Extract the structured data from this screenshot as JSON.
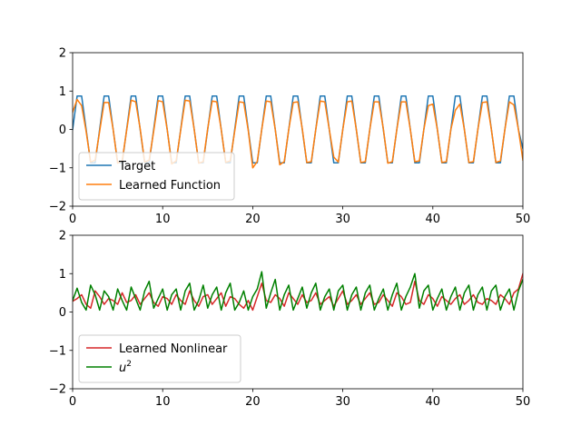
{
  "chart_data": [
    {
      "type": "line",
      "xlim": [
        0,
        50
      ],
      "ylim": [
        -2,
        2
      ],
      "xticks": [
        0,
        10,
        20,
        30,
        40,
        50
      ],
      "yticks": [
        -2,
        -1,
        0,
        1,
        2
      ],
      "grid": false,
      "legend_position": "lower-left",
      "series": [
        {
          "name": "Target",
          "color": "#1f77b4",
          "x": [
            0,
            0.5,
            1,
            1.5,
            2,
            2.5,
            3,
            3.5,
            4,
            4.5,
            5,
            5.5,
            6,
            6.5,
            7,
            7.5,
            8,
            8.5,
            9,
            9.5,
            10,
            10.5,
            11,
            11.5,
            12,
            12.5,
            13,
            13.5,
            14,
            14.5,
            15,
            15.5,
            16,
            16.5,
            17,
            17.5,
            18,
            18.5,
            19,
            19.5,
            20,
            20.5,
            21,
            21.5,
            22,
            22.5,
            23,
            23.5,
            24,
            24.5,
            25,
            25.5,
            26,
            26.5,
            27,
            27.5,
            28,
            28.5,
            29,
            29.5,
            30,
            30.5,
            31,
            31.5,
            32,
            32.5,
            33,
            33.5,
            34,
            34.5,
            35,
            35.5,
            36,
            36.5,
            37,
            37.5,
            38,
            38.5,
            39,
            39.5,
            40,
            40.5,
            41,
            41.5,
            42,
            42.5,
            43,
            43.5,
            44,
            44.5,
            45,
            45.5,
            46,
            46.5,
            47,
            47.5,
            48,
            48.5,
            49,
            49.5,
            50
          ],
          "y": [
            0.0,
            0.87,
            0.87,
            0.0,
            -0.87,
            -0.87,
            0.0,
            0.87,
            0.87,
            0.0,
            -0.87,
            -0.87,
            0.0,
            0.87,
            0.87,
            0.0,
            -0.87,
            -0.87,
            0.0,
            0.87,
            0.87,
            0.0,
            -0.87,
            -0.87,
            0.0,
            0.87,
            0.87,
            0.0,
            -0.87,
            -0.87,
            0.0,
            0.87,
            0.87,
            0.0,
            -0.87,
            -0.87,
            0.0,
            0.87,
            0.87,
            0.0,
            -0.87,
            -0.87,
            0.0,
            0.87,
            0.87,
            0.0,
            -0.87,
            -0.87,
            0.0,
            0.87,
            0.87,
            0.0,
            -0.87,
            -0.87,
            0.0,
            0.87,
            0.87,
            0.0,
            -0.87,
            -0.87,
            0.0,
            0.87,
            0.87,
            0.0,
            -0.87,
            -0.87,
            0.0,
            0.87,
            0.87,
            0.0,
            -0.87,
            -0.87,
            0.0,
            0.87,
            0.87,
            0.0,
            -0.87,
            -0.87,
            0.0,
            0.87,
            0.87,
            0.0,
            -0.87,
            -0.87,
            0.0,
            0.87,
            0.87,
            0.0,
            -0.87,
            -0.87,
            0.0,
            0.87,
            0.87,
            0.0,
            -0.87,
            -0.87,
            0.0,
            0.87,
            0.87,
            0.0,
            -0.5
          ]
        },
        {
          "name": "Learned Function",
          "color": "#ff7f0e",
          "x": [
            0,
            0.5,
            1,
            1.5,
            2,
            2.5,
            3,
            3.5,
            4,
            4.5,
            5,
            5.5,
            6,
            6.5,
            7,
            7.5,
            8,
            8.5,
            9,
            9.5,
            10,
            10.5,
            11,
            11.5,
            12,
            12.5,
            13,
            13.5,
            14,
            14.5,
            15,
            15.5,
            16,
            16.5,
            17,
            17.5,
            18,
            18.5,
            19,
            19.5,
            20,
            20.5,
            21,
            21.5,
            22,
            22.5,
            23,
            23.5,
            24,
            24.5,
            25,
            25.5,
            26,
            26.5,
            27,
            27.5,
            28,
            28.5,
            29,
            29.5,
            30,
            30.5,
            31,
            31.5,
            32,
            32.5,
            33,
            33.5,
            34,
            34.5,
            35,
            35.5,
            36,
            36.5,
            37,
            37.5,
            38,
            38.5,
            39,
            39.5,
            40,
            40.5,
            41,
            41.5,
            42,
            42.5,
            43,
            43.5,
            44,
            44.5,
            45,
            45.5,
            46,
            46.5,
            47,
            47.5,
            48,
            48.5,
            49,
            49.5,
            50
          ],
          "y": [
            0.45,
            0.78,
            0.62,
            -0.05,
            -0.85,
            -0.8,
            -0.05,
            0.7,
            0.7,
            0.0,
            -0.88,
            -0.82,
            -0.02,
            0.76,
            0.72,
            0.02,
            -0.85,
            -0.8,
            -0.05,
            0.75,
            0.72,
            0.0,
            -0.9,
            -0.82,
            -0.02,
            0.76,
            0.74,
            0.0,
            -0.88,
            -0.84,
            0.02,
            0.74,
            0.72,
            0.0,
            -0.86,
            -0.82,
            -0.04,
            0.72,
            0.7,
            -0.02,
            -1.0,
            -0.84,
            0.0,
            0.74,
            0.72,
            0.0,
            -0.92,
            -0.84,
            0.0,
            0.7,
            0.72,
            0.02,
            -0.86,
            -0.84,
            0.0,
            0.74,
            0.72,
            0.0,
            -0.72,
            -0.85,
            0.0,
            0.72,
            0.74,
            0.0,
            -0.86,
            -0.84,
            0.0,
            0.72,
            0.72,
            0.02,
            -0.88,
            -0.84,
            0.0,
            0.72,
            0.72,
            0.0,
            -0.84,
            -0.82,
            0.0,
            0.62,
            0.66,
            0.0,
            -0.86,
            -0.84,
            0.0,
            0.5,
            0.66,
            0.0,
            -0.86,
            -0.84,
            0.0,
            0.7,
            0.72,
            0.0,
            -0.86,
            -0.82,
            0.0,
            0.72,
            0.64,
            0.0,
            -0.8
          ]
        }
      ]
    },
    {
      "type": "line",
      "xlim": [
        0,
        50
      ],
      "ylim": [
        -2,
        2
      ],
      "xticks": [
        0,
        10,
        20,
        30,
        40,
        50
      ],
      "yticks": [
        -2,
        -1,
        0,
        1,
        2
      ],
      "grid": false,
      "legend_position": "lower-left",
      "series": [
        {
          "name": "Learned Nonlinear",
          "color": "#d62728",
          "x": [
            0,
            0.5,
            1,
            1.5,
            2,
            2.5,
            3,
            3.5,
            4,
            4.5,
            5,
            5.5,
            6,
            6.5,
            7,
            7.5,
            8,
            8.5,
            9,
            9.5,
            10,
            10.5,
            11,
            11.5,
            12,
            12.5,
            13,
            13.5,
            14,
            14.5,
            15,
            15.5,
            16,
            16.5,
            17,
            17.5,
            18,
            18.5,
            19,
            19.5,
            20,
            20.5,
            21,
            21.5,
            22,
            22.5,
            23,
            23.5,
            24,
            24.5,
            25,
            25.5,
            26,
            26.5,
            27,
            27.5,
            28,
            28.5,
            29,
            29.5,
            30,
            30.5,
            31,
            31.5,
            32,
            32.5,
            33,
            33.5,
            34,
            34.5,
            35,
            35.5,
            36,
            36.5,
            37,
            37.5,
            38,
            38.5,
            39,
            39.5,
            40,
            40.5,
            41,
            41.5,
            42,
            42.5,
            43,
            43.5,
            44,
            44.5,
            45,
            45.5,
            46,
            46.5,
            47,
            47.5,
            48,
            48.5,
            49,
            49.5,
            50
          ],
          "y": [
            0.28,
            0.35,
            0.45,
            0.2,
            0.1,
            0.55,
            0.4,
            0.2,
            0.35,
            0.3,
            0.2,
            0.5,
            0.25,
            0.3,
            0.45,
            0.2,
            0.35,
            0.5,
            0.25,
            0.15,
            0.4,
            0.35,
            0.2,
            0.45,
            0.3,
            0.2,
            0.55,
            0.3,
            0.15,
            0.4,
            0.45,
            0.2,
            0.35,
            0.5,
            0.15,
            0.4,
            0.35,
            0.2,
            0.1,
            0.3,
            0.05,
            0.4,
            0.75,
            0.3,
            0.25,
            0.45,
            0.35,
            0.15,
            0.5,
            0.35,
            0.2,
            0.45,
            0.25,
            0.3,
            0.5,
            0.2,
            0.3,
            0.4,
            0.15,
            0.35,
            0.55,
            0.2,
            0.3,
            0.45,
            0.2,
            0.35,
            0.5,
            0.2,
            0.25,
            0.45,
            0.3,
            0.15,
            0.5,
            0.4,
            0.2,
            0.25,
            0.8,
            0.3,
            0.2,
            0.45,
            0.35,
            0.15,
            0.4,
            0.3,
            0.2,
            0.35,
            0.45,
            0.2,
            0.3,
            0.45,
            0.25,
            0.2,
            0.35,
            0.3,
            0.2,
            0.45,
            0.35,
            0.2,
            0.5,
            0.6,
            1.0
          ]
        },
        {
          "name": "u²",
          "color": "#008000",
          "x": [
            0,
            0.5,
            1,
            1.5,
            2,
            2.5,
            3,
            3.5,
            4,
            4.5,
            5,
            5.5,
            6,
            6.5,
            7,
            7.5,
            8,
            8.5,
            9,
            9.5,
            10,
            10.5,
            11,
            11.5,
            12,
            12.5,
            13,
            13.5,
            14,
            14.5,
            15,
            15.5,
            16,
            16.5,
            17,
            17.5,
            18,
            18.5,
            19,
            19.5,
            20,
            20.5,
            21,
            21.5,
            22,
            22.5,
            23,
            23.5,
            24,
            24.5,
            25,
            25.5,
            26,
            26.5,
            27,
            27.5,
            28,
            28.5,
            29,
            29.5,
            30,
            30.5,
            31,
            31.5,
            32,
            32.5,
            33,
            33.5,
            34,
            34.5,
            35,
            35.5,
            36,
            36.5,
            37,
            37.5,
            38,
            38.5,
            39,
            39.5,
            40,
            40.5,
            41,
            41.5,
            42,
            42.5,
            43,
            43.5,
            44,
            44.5,
            45,
            45.5,
            46,
            46.5,
            47,
            47.5,
            48,
            48.5,
            49,
            49.5,
            50
          ],
          "y": [
            0.3,
            0.62,
            0.25,
            0.05,
            0.7,
            0.45,
            0.05,
            0.55,
            0.4,
            0.05,
            0.6,
            0.3,
            0.05,
            0.65,
            0.35,
            0.05,
            0.55,
            0.8,
            0.1,
            0.35,
            0.6,
            0.05,
            0.45,
            0.6,
            0.05,
            0.55,
            0.75,
            0.05,
            0.3,
            0.7,
            0.1,
            0.45,
            0.65,
            0.05,
            0.5,
            0.75,
            0.05,
            0.25,
            0.55,
            0.05,
            0.4,
            0.6,
            1.05,
            0.1,
            0.5,
            0.85,
            0.05,
            0.45,
            0.7,
            0.05,
            0.35,
            0.65,
            0.1,
            0.5,
            0.75,
            0.05,
            0.4,
            0.6,
            0.05,
            0.55,
            0.7,
            0.05,
            0.45,
            0.65,
            0.05,
            0.5,
            0.7,
            0.05,
            0.35,
            0.6,
            0.05,
            0.45,
            0.75,
            0.05,
            0.4,
            0.65,
            1.0,
            0.1,
            0.55,
            0.7,
            0.05,
            0.35,
            0.6,
            0.05,
            0.4,
            0.65,
            0.05,
            0.5,
            0.7,
            0.05,
            0.45,
            0.65,
            0.05,
            0.55,
            0.7,
            0.05,
            0.4,
            0.6,
            0.05,
            0.55,
            0.85
          ]
        }
      ]
    }
  ]
}
